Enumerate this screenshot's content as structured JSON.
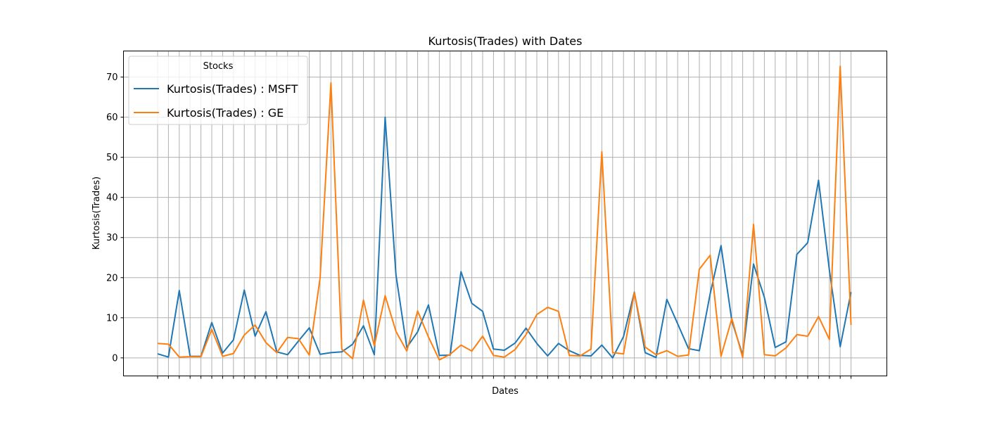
{
  "chart_data": {
    "type": "line",
    "title": "Kurtosis(Trades) with Dates",
    "xlabel": "Dates",
    "ylabel": "Kurtosis(Trades)",
    "ylim": [
      -4.5,
      76.5
    ],
    "yticks": [
      0,
      10,
      20,
      30,
      40,
      50,
      60,
      70
    ],
    "grid": true,
    "legend": {
      "title": "Stocks",
      "position": "top-left"
    },
    "series": [
      {
        "name": "Kurtosis(Trades) : MSFT",
        "color": "#1f77b4",
        "values": [
          1.0,
          0.2,
          16.8,
          0.4,
          0.4,
          8.8,
          1.2,
          4.5,
          16.9,
          5.4,
          11.5,
          1.5,
          0.8,
          4.2,
          7.5,
          0.9,
          1.3,
          1.5,
          3.4,
          8.0,
          0.8,
          60.0,
          20.7,
          2.6,
          6.5,
          13.2,
          0.6,
          0.7,
          21.5,
          13.6,
          11.6,
          2.2,
          1.9,
          3.7,
          7.4,
          3.6,
          0.5,
          3.6,
          1.8,
          0.6,
          0.5,
          3.2,
          0.0,
          5.3,
          16.4,
          1.3,
          0.1,
          14.6,
          8.5,
          2.3,
          1.8,
          16.0,
          28.0,
          9.2,
          0.7,
          23.4,
          15.1,
          2.6,
          4.0,
          25.8,
          28.7,
          44.3,
          21.9,
          2.8,
          16.4
        ]
      },
      {
        "name": "Kurtosis(Trades) : GE",
        "color": "#ff7f0e",
        "values": [
          3.6,
          3.4,
          0.2,
          0.3,
          0.3,
          7.1,
          0.4,
          1.1,
          5.7,
          8.2,
          3.8,
          1.3,
          5.1,
          4.8,
          0.7,
          20.0,
          68.6,
          2.2,
          -0.2,
          14.4,
          3.0,
          15.5,
          6.6,
          1.7,
          11.7,
          5.2,
          -0.5,
          0.9,
          3.2,
          1.7,
          5.4,
          0.6,
          0.2,
          2.1,
          5.8,
          10.8,
          12.6,
          11.6,
          0.6,
          0.5,
          2.2,
          51.4,
          1.3,
          1.0,
          16.3,
          2.7,
          0.8,
          1.8,
          0.4,
          0.7,
          22.1,
          25.6,
          0.4,
          9.8,
          0.1,
          33.3,
          0.8,
          0.5,
          2.5,
          5.8,
          5.4,
          10.3,
          4.6,
          72.7,
          8.2
        ]
      }
    ]
  }
}
